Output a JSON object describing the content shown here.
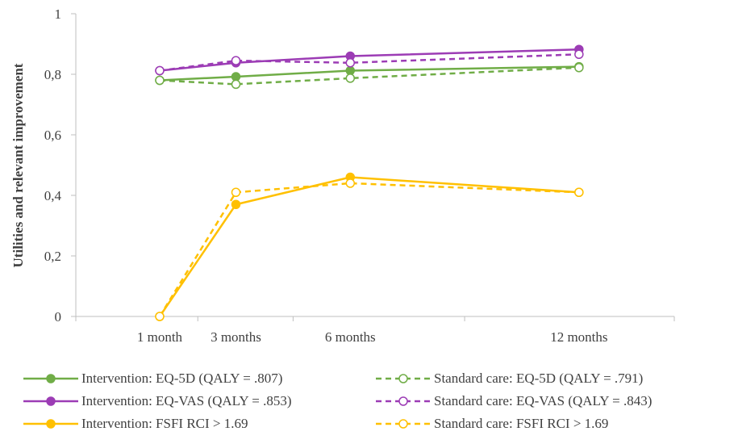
{
  "chart_data": {
    "type": "line",
    "ylabel": "Utilities and relevant improvement",
    "xlabel": "",
    "categories": [
      "1 month",
      "3 months",
      "6 months",
      "12 months"
    ],
    "x": [
      1,
      3,
      6,
      12
    ],
    "xlim": [
      -1.2,
      14.5
    ],
    "ylim": [
      0,
      1
    ],
    "yticks": [
      "0",
      "0,2",
      "0,4",
      "0,6",
      "0,8",
      "1"
    ],
    "ytick_values": [
      0,
      0.2,
      0.4,
      0.6,
      0.8,
      1
    ],
    "grid": false,
    "legend_position": "bottom",
    "series": [
      {
        "name": "Intervention: EQ-5D (QALY = .807)",
        "values": [
          0.78,
          0.792,
          0.812,
          0.825
        ],
        "color": "#70ad47",
        "dashed": false,
        "filled": true
      },
      {
        "name": "Standard care: EQ-5D (QALY = .791)",
        "values": [
          0.78,
          0.767,
          0.787,
          0.822
        ],
        "color": "#70ad47",
        "dashed": true,
        "filled": false
      },
      {
        "name": "Intervention: EQ-VAS (QALY = .853)",
        "values": [
          0.812,
          0.838,
          0.86,
          0.882
        ],
        "color": "#9c3cb5",
        "dashed": false,
        "filled": true
      },
      {
        "name": "Standard care: EQ-VAS (QALY = .843)",
        "values": [
          0.812,
          0.845,
          0.838,
          0.866
        ],
        "color": "#9c3cb5",
        "dashed": true,
        "filled": false
      },
      {
        "name": "Intervention: FSFI RCI > 1.69",
        "values": [
          0.0,
          0.37,
          0.46,
          0.41
        ],
        "color": "#ffc000",
        "dashed": false,
        "filled": true
      },
      {
        "name": "Standard care: FSFI RCI > 1.69",
        "values": [
          0.0,
          0.41,
          0.44,
          0.41
        ],
        "color": "#ffc000",
        "dashed": true,
        "filled": false
      }
    ]
  }
}
